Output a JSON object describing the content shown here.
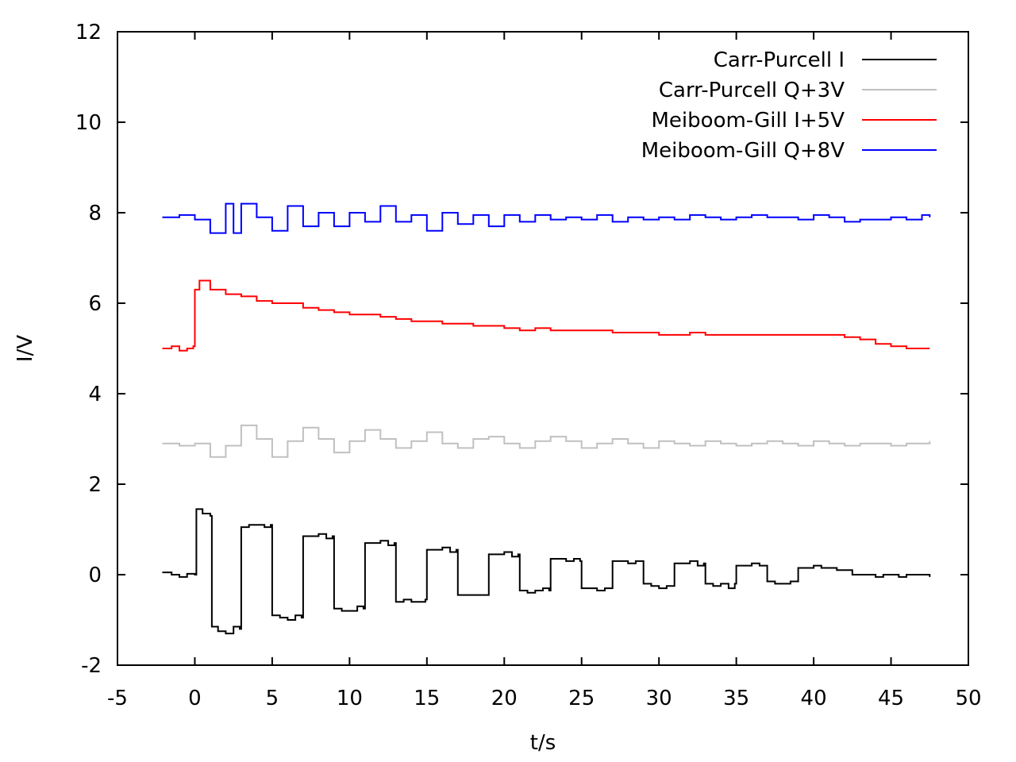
{
  "chart_data": {
    "type": "line",
    "title": "",
    "xlabel": "t/s",
    "ylabel": "I/V",
    "xlim": [
      -5,
      50
    ],
    "ylim": [
      -2,
      12
    ],
    "xticks": [
      "-5",
      "0",
      "5",
      "10",
      "15",
      "20",
      "25",
      "30",
      "35",
      "40",
      "45",
      "50"
    ],
    "yticks": [
      "-2",
      "0",
      "2",
      "4",
      "6",
      "8",
      "10",
      "12"
    ],
    "grid": false,
    "legend_position": "top-right",
    "series": [
      {
        "name": "Carr-Purcell I",
        "color": "#000000",
        "x": [
          -2.1,
          -1.5,
          -1.0,
          -0.5,
          0.0,
          0.1,
          0.5,
          1.0,
          1.1,
          1.5,
          2.0,
          2.5,
          2.9,
          3.0,
          3.5,
          4.0,
          4.5,
          4.9,
          5.0,
          5.5,
          6.0,
          6.5,
          6.9,
          7.0,
          7.5,
          8.0,
          8.5,
          8.9,
          9.0,
          9.5,
          10.0,
          10.5,
          10.9,
          11.0,
          11.5,
          12.0,
          12.5,
          12.9,
          13.0,
          13.5,
          14.0,
          14.5,
          14.9,
          15.0,
          15.5,
          16.0,
          16.5,
          16.9,
          17.0,
          18.0,
          18.9,
          19.0,
          19.5,
          20.0,
          20.5,
          20.9,
          21.0,
          21.5,
          22.0,
          22.5,
          22.9,
          23.0,
          23.5,
          24.0,
          24.5,
          24.9,
          25.0,
          25.5,
          26.0,
          26.5,
          26.9,
          27.0,
          27.5,
          28.0,
          28.5,
          28.9,
          29.0,
          29.5,
          30.0,
          30.5,
          30.9,
          31.0,
          31.5,
          32.0,
          32.5,
          32.9,
          33.0,
          33.5,
          34.0,
          34.5,
          34.9,
          35.0,
          35.5,
          36.0,
          36.5,
          36.9,
          37.0,
          37.5,
          38.0,
          38.5,
          38.9,
          39.0,
          39.5,
          40.0,
          40.5,
          41.0,
          41.5,
          42.0,
          42.5,
          42.9,
          43.0,
          43.5,
          44.0,
          44.5,
          45.0,
          45.5,
          46.0,
          46.5,
          47.0,
          47.5
        ],
        "values": [
          0.05,
          0.0,
          -0.05,
          0.02,
          0.0,
          1.45,
          1.35,
          1.3,
          -1.15,
          -1.25,
          -1.3,
          -1.15,
          -1.2,
          1.05,
          1.1,
          1.1,
          1.05,
          1.1,
          -0.9,
          -0.95,
          -1.0,
          -0.9,
          -0.95,
          0.85,
          0.85,
          0.9,
          0.8,
          0.85,
          -0.75,
          -0.8,
          -0.8,
          -0.7,
          -0.75,
          0.7,
          0.7,
          0.75,
          0.65,
          0.7,
          -0.6,
          -0.55,
          -0.6,
          -0.6,
          -0.55,
          0.55,
          0.55,
          0.6,
          0.5,
          0.55,
          -0.45,
          -0.45,
          -0.45,
          0.45,
          0.45,
          0.5,
          0.4,
          0.45,
          -0.35,
          -0.4,
          -0.35,
          -0.3,
          -0.35,
          0.35,
          0.35,
          0.3,
          0.35,
          0.3,
          -0.3,
          -0.3,
          -0.35,
          -0.3,
          -0.3,
          0.3,
          0.3,
          0.25,
          0.3,
          0.3,
          -0.2,
          -0.25,
          -0.3,
          -0.25,
          -0.25,
          0.25,
          0.25,
          0.3,
          0.2,
          0.25,
          -0.2,
          -0.25,
          -0.2,
          -0.3,
          -0.2,
          0.2,
          0.2,
          0.25,
          0.2,
          0.2,
          -0.15,
          -0.2,
          -0.2,
          -0.15,
          -0.15,
          0.15,
          0.15,
          0.2,
          0.15,
          0.15,
          0.1,
          0.1,
          0.0,
          0.0,
          0.0,
          0.0,
          -0.05,
          0.0,
          0.0,
          -0.05,
          0.0,
          0.0,
          0.0,
          -0.05
        ]
      },
      {
        "name": "Carr-Purcell Q+3V",
        "color": "#c0c0c0",
        "x": [
          -2.1,
          -1.0,
          0.0,
          1.0,
          2.0,
          3.0,
          4.0,
          5.0,
          6.0,
          7.0,
          8.0,
          9.0,
          10.0,
          11.0,
          12.0,
          13.0,
          14.0,
          15.0,
          16.0,
          17.0,
          18.0,
          19.0,
          20.0,
          21.0,
          22.0,
          23.0,
          24.0,
          25.0,
          26.0,
          27.0,
          28.0,
          29.0,
          30.0,
          31.0,
          32.0,
          33.0,
          34.0,
          35.0,
          36.0,
          37.0,
          38.0,
          39.0,
          40.0,
          41.0,
          42.0,
          43.0,
          44.0,
          45.0,
          46.0,
          47.0,
          47.5
        ],
        "values": [
          2.9,
          2.85,
          2.9,
          2.6,
          2.85,
          3.3,
          3.0,
          2.6,
          2.95,
          3.25,
          3.0,
          2.7,
          2.95,
          3.2,
          3.0,
          2.8,
          2.95,
          3.15,
          2.9,
          2.8,
          3.0,
          3.05,
          2.9,
          2.8,
          2.95,
          3.05,
          2.95,
          2.8,
          2.9,
          3.0,
          2.9,
          2.8,
          2.95,
          2.9,
          2.85,
          2.95,
          2.9,
          2.85,
          2.9,
          2.95,
          2.9,
          2.85,
          2.95,
          2.9,
          2.85,
          2.9,
          2.9,
          2.85,
          2.9,
          2.9,
          2.95
        ]
      },
      {
        "name": "Meiboom-Gill I+5V",
        "color": "#ff0000",
        "x": [
          -2.1,
          -1.5,
          -1.0,
          -0.5,
          -0.1,
          0.0,
          0.3,
          1.0,
          2.0,
          3.0,
          4.0,
          5.0,
          6.0,
          7.0,
          8.0,
          9.0,
          10.0,
          11.0,
          12.0,
          13.0,
          14.0,
          15.0,
          16.0,
          17.0,
          18.0,
          19.0,
          20.0,
          21.0,
          22.0,
          23.0,
          24.0,
          25.0,
          26.0,
          27.0,
          28.0,
          29.0,
          30.0,
          31.0,
          32.0,
          33.0,
          34.0,
          35.0,
          36.0,
          37.0,
          38.0,
          39.0,
          40.0,
          41.0,
          42.0,
          43.0,
          44.0,
          45.0,
          46.0,
          47.0,
          47.5
        ],
        "values": [
          5.0,
          5.05,
          4.95,
          5.0,
          5.05,
          6.3,
          6.5,
          6.3,
          6.2,
          6.15,
          6.05,
          6.0,
          6.0,
          5.9,
          5.85,
          5.8,
          5.75,
          5.75,
          5.7,
          5.65,
          5.6,
          5.6,
          5.55,
          5.55,
          5.5,
          5.5,
          5.45,
          5.4,
          5.45,
          5.4,
          5.4,
          5.4,
          5.4,
          5.35,
          5.35,
          5.35,
          5.3,
          5.3,
          5.35,
          5.3,
          5.3,
          5.3,
          5.3,
          5.3,
          5.3,
          5.3,
          5.3,
          5.3,
          5.25,
          5.2,
          5.1,
          5.05,
          5.0,
          5.0,
          5.0
        ]
      },
      {
        "name": "Meiboom-Gill Q+8V",
        "color": "#0000ff",
        "x": [
          -2.1,
          -1.0,
          0.0,
          1.0,
          2.0,
          2.5,
          3.0,
          4.0,
          5.0,
          6.0,
          7.0,
          8.0,
          9.0,
          10.0,
          11.0,
          12.0,
          13.0,
          14.0,
          15.0,
          16.0,
          17.0,
          18.0,
          19.0,
          20.0,
          21.0,
          22.0,
          23.0,
          24.0,
          25.0,
          26.0,
          27.0,
          28.0,
          29.0,
          30.0,
          31.0,
          32.0,
          33.0,
          34.0,
          35.0,
          36.0,
          37.0,
          38.0,
          39.0,
          40.0,
          41.0,
          42.0,
          43.0,
          44.0,
          45.0,
          46.0,
          47.0,
          47.5
        ],
        "values": [
          7.9,
          7.95,
          7.85,
          7.55,
          8.2,
          7.55,
          8.2,
          7.9,
          7.6,
          8.15,
          7.7,
          8.0,
          7.7,
          8.0,
          7.8,
          8.15,
          7.8,
          7.95,
          7.6,
          8.0,
          7.75,
          7.95,
          7.7,
          7.95,
          7.8,
          7.95,
          7.85,
          7.9,
          7.85,
          7.95,
          7.8,
          7.9,
          7.85,
          7.9,
          7.85,
          7.95,
          7.9,
          7.85,
          7.9,
          7.95,
          7.9,
          7.9,
          7.85,
          7.95,
          7.9,
          7.8,
          7.85,
          7.85,
          7.9,
          7.85,
          7.95,
          7.9
        ]
      }
    ]
  }
}
